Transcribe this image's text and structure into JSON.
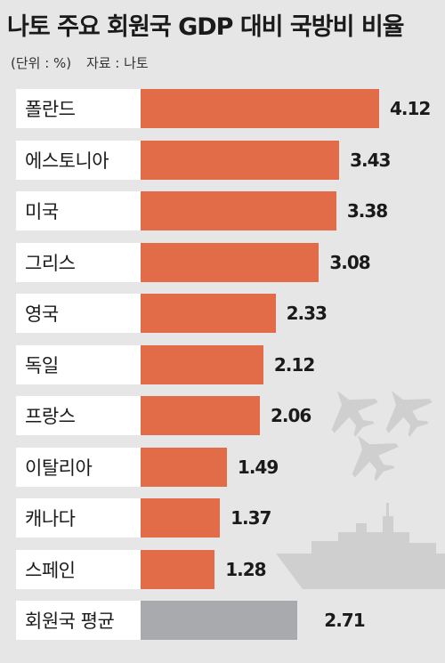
{
  "header": {
    "title": "나토 주요 회원국 GDP 대비 국방비 비율",
    "unit": "(단위 : %)",
    "source": "자료 : 나토"
  },
  "colors": {
    "bar": "#e16c47",
    "average_bar": "#a8aaad",
    "background": "#e6e6e6",
    "label_box": "#ffffff"
  },
  "chart_data": {
    "type": "bar",
    "orientation": "horizontal",
    "title": "나토 주요 회원국 GDP 대비 국방비 비율",
    "unit": "%",
    "categories": [
      "폴란드",
      "에스토니아",
      "미국",
      "그리스",
      "영국",
      "독일",
      "프랑스",
      "이탈리아",
      "캐나다",
      "스페인",
      "회원국 평균"
    ],
    "values": [
      4.12,
      3.43,
      3.38,
      3.08,
      2.33,
      2.12,
      2.06,
      1.49,
      1.37,
      1.28,
      2.71
    ],
    "value_labels": [
      "4.12",
      "3.43",
      "3.38",
      "3.08",
      "2.33",
      "2.12",
      "2.06",
      "1.49",
      "1.37",
      "1.28",
      "2.71"
    ],
    "highlight": [
      "average"
    ],
    "xlim": [
      0,
      4.12
    ],
    "grid": false,
    "legend": "none"
  }
}
